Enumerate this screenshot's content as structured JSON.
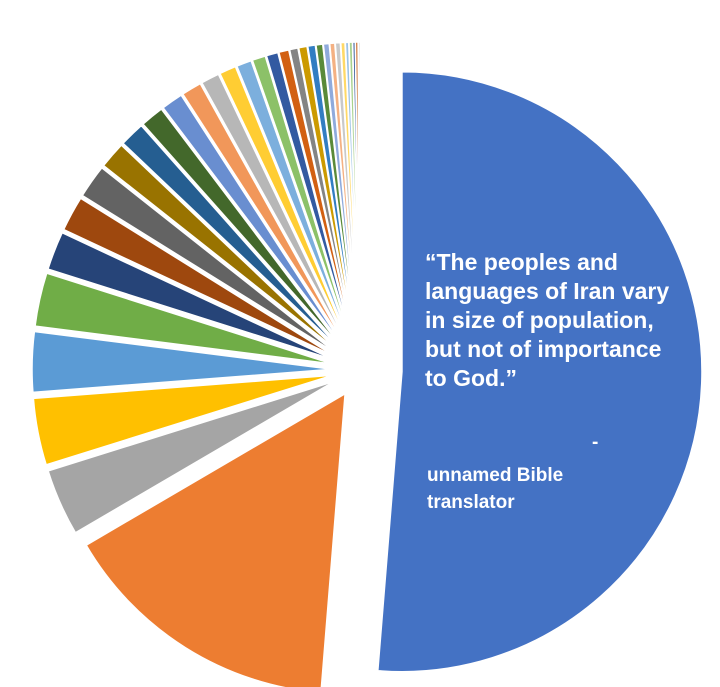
{
  "chart_data": {
    "type": "pie",
    "title": "",
    "legend": "none",
    "exploded": true,
    "values": [
      57,
      17,
      4,
      4,
      3.6,
      3.2,
      2.3,
      2.1,
      2.0,
      1.6,
      1.5,
      1.4,
      1.3,
      1.2,
      1.1,
      1.0,
      0.9,
      0.8,
      0.7,
      0.6,
      0.5,
      0.5,
      0.45,
      0.4,
      0.35,
      0.3,
      0.3,
      0.25,
      0.2,
      0.2,
      0.15,
      0.15,
      0.1
    ],
    "colors": [
      "#4472c4",
      "#ed7d31",
      "#a5a5a5",
      "#ffc000",
      "#5b9bd5",
      "#70ad47",
      "#264478",
      "#9e480e",
      "#636363",
      "#997300",
      "#255e91",
      "#43682b",
      "#698ed0",
      "#f1975a",
      "#b7b7b7",
      "#ffcd33",
      "#7cafdd",
      "#8cc168",
      "#335aa1",
      "#d26012",
      "#848484",
      "#cc9a00",
      "#327dc2",
      "#5a8a39",
      "#8faadc",
      "#f4b183",
      "#c9c9c9",
      "#ffd966",
      "#9dc3e6",
      "#a9d18e",
      "#2f5597",
      "#c55a11",
      "#7f7f7f"
    ]
  },
  "quote": {
    "text": "“The peoples and languages of Iran vary in size of population, but not of importance to God.”",
    "dash": "-",
    "attribution": "unnamed Bible translator"
  }
}
